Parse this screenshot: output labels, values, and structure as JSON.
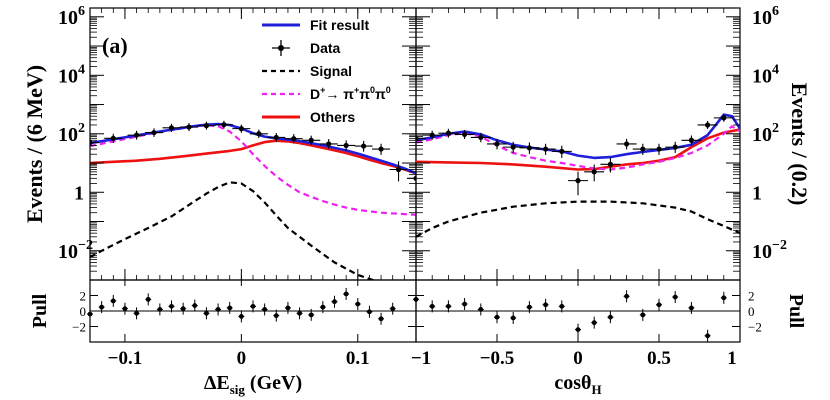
{
  "chart_data": [
    {
      "type": "line",
      "panel_label": "(a)",
      "ylabel": "Events / (6 MeV)",
      "xlabel": "ΔE",
      "xlabel_sub": "sig",
      "xlabel_unit": " (GeV)",
      "xlim": [
        -0.13,
        0.15
      ],
      "ylim": [
        0.001,
        2000000
      ],
      "yscale": "log",
      "x_ticks": [
        {
          "v": -0.1,
          "label": "−0.1"
        },
        {
          "v": 0.0,
          "label": "0"
        },
        {
          "v": 0.1,
          "label": "0.1"
        }
      ],
      "y_ticks": [
        {
          "v": 0.01,
          "base": "10",
          "exp": "−2"
        },
        {
          "v": 1,
          "base": "1",
          "exp": ""
        },
        {
          "v": 100,
          "base": "10",
          "exp": "2"
        },
        {
          "v": 10000,
          "base": "10",
          "exp": "4"
        },
        {
          "v": 1000000,
          "base": "10",
          "exp": "6"
        }
      ],
      "legend": {
        "placement": "top-right",
        "entries": [
          {
            "label": "Fit result",
            "style": "line",
            "color": "#1f1fdc"
          },
          {
            "label": "Data",
            "style": "errorbar",
            "color": "#000000"
          },
          {
            "label": "Signal",
            "style": "dashed",
            "color": "#000000"
          },
          {
            "label": "D",
            "sup1": "+",
            "arrow": "→ π",
            "sup2": "+",
            "mid": "π",
            "sup3": "0",
            "end": "π",
            "sup4": "0",
            "style": "dashed",
            "color": "#ee22ee"
          },
          {
            "label": "Others",
            "style": "line",
            "color": "#ee1111"
          }
        ]
      },
      "series": [
        {
          "name": "Fit result",
          "style": "line",
          "color": "#1f1fdc",
          "x": [
            -0.13,
            -0.11,
            -0.09,
            -0.07,
            -0.05,
            -0.04,
            -0.03,
            -0.02,
            -0.01,
            0.0,
            0.01,
            0.02,
            0.03,
            0.04,
            0.05,
            0.06,
            0.07,
            0.08,
            0.09,
            0.1,
            0.11,
            0.12,
            0.13,
            0.14,
            0.15
          ],
          "y": [
            48,
            65,
            88,
            120,
            160,
            185,
            205,
            215,
            200,
            150,
            105,
            80,
            70,
            63,
            56,
            48,
            40,
            33,
            27,
            21,
            16,
            12,
            9,
            6.5,
            4.5
          ]
        },
        {
          "name": "Signal",
          "style": "dashed",
          "color": "#000000",
          "x": [
            -0.13,
            -0.12,
            -0.1,
            -0.08,
            -0.06,
            -0.04,
            -0.03,
            -0.02,
            -0.01,
            0.0,
            0.01,
            0.02,
            0.03,
            0.04,
            0.06,
            0.08,
            0.1,
            0.12,
            0.14
          ],
          "y": [
            0.006,
            0.01,
            0.025,
            0.06,
            0.15,
            0.5,
            0.9,
            1.5,
            2.2,
            2.0,
            1.1,
            0.45,
            0.16,
            0.06,
            0.015,
            0.004,
            0.0015,
            0.0008,
            0.0006
          ]
        },
        {
          "name": "D+→π+π0π0",
          "style": "dashed",
          "color": "#ee22ee",
          "x": [
            -0.13,
            -0.11,
            -0.09,
            -0.07,
            -0.05,
            -0.04,
            -0.03,
            -0.02,
            -0.01,
            0.0,
            0.01,
            0.02,
            0.03,
            0.04,
            0.05,
            0.06,
            0.07,
            0.08,
            0.09,
            0.1,
            0.12,
            0.15
          ],
          "y": [
            38,
            55,
            80,
            115,
            155,
            180,
            195,
            180,
            120,
            55,
            20,
            8,
            3.5,
            1.8,
            1.0,
            0.7,
            0.5,
            0.38,
            0.3,
            0.25,
            0.2,
            0.17
          ]
        },
        {
          "name": "Others",
          "style": "line",
          "color": "#ee1111",
          "x": [
            -0.13,
            -0.11,
            -0.09,
            -0.07,
            -0.05,
            -0.03,
            -0.01,
            0.0,
            0.01,
            0.02,
            0.03,
            0.04,
            0.05,
            0.06,
            0.07,
            0.08,
            0.09,
            0.1,
            0.11,
            0.12,
            0.13,
            0.14,
            0.15
          ],
          "y": [
            10,
            11,
            12,
            14,
            17,
            21,
            26,
            30,
            40,
            52,
            58,
            55,
            48,
            40,
            33,
            27,
            22,
            17,
            13,
            10,
            8,
            6,
            4.5
          ]
        },
        {
          "name": "Data",
          "style": "errorbar",
          "color": "#000000",
          "x": [
            -0.13,
            -0.11,
            -0.09,
            -0.075,
            -0.06,
            -0.045,
            -0.03,
            -0.015,
            0.0,
            0.015,
            0.03,
            0.045,
            0.06,
            0.075,
            0.09,
            0.105,
            0.12,
            0.135,
            0.15
          ],
          "y": [
            50,
            70,
            90,
            110,
            160,
            170,
            190,
            205,
            150,
            100,
            75,
            68,
            60,
            45,
            40,
            38,
            30,
            6,
            3
          ],
          "yerr": [
            8,
            9,
            10,
            11,
            13,
            14,
            14,
            15,
            13,
            10,
            9,
            9,
            8,
            7,
            7,
            7,
            6,
            3,
            2
          ]
        }
      ]
    },
    {
      "type": "line",
      "ylabel": "Events / (0.2)",
      "xlabel": "cosθ",
      "xlabel_sub": "H",
      "xlabel_unit": "",
      "xlim": [
        -1,
        1
      ],
      "ylim": [
        0.001,
        2000000
      ],
      "yscale": "log",
      "x_ticks": [
        {
          "v": -1,
          "label": "−1"
        },
        {
          "v": -0.5,
          "label": "−0.5"
        },
        {
          "v": 0,
          "label": "0"
        },
        {
          "v": 0.5,
          "label": "0.5"
        },
        {
          "v": 1,
          "label": "1"
        }
      ],
      "y_ticks": [
        {
          "v": 0.01,
          "base": "10",
          "exp": "−2"
        },
        {
          "v": 1,
          "base": "1",
          "exp": ""
        },
        {
          "v": 100,
          "base": "10",
          "exp": "2"
        },
        {
          "v": 10000,
          "base": "10",
          "exp": "4"
        },
        {
          "v": 1000000,
          "base": "10",
          "exp": "6"
        }
      ],
      "series": [
        {
          "name": "Fit result",
          "style": "line",
          "color": "#1f1fdc",
          "x": [
            -1,
            -0.9,
            -0.8,
            -0.7,
            -0.6,
            -0.5,
            -0.4,
            -0.3,
            -0.2,
            -0.1,
            0.0,
            0.1,
            0.2,
            0.3,
            0.4,
            0.5,
            0.6,
            0.7,
            0.8,
            0.85,
            0.9,
            0.95,
            1.0
          ],
          "y": [
            60,
            75,
            100,
            120,
            95,
            60,
            42,
            34,
            29,
            25,
            18,
            15,
            16,
            20,
            24,
            28,
            33,
            42,
            90,
            200,
            450,
            400,
            150
          ]
        },
        {
          "name": "Signal",
          "style": "dashed",
          "color": "#000000",
          "x": [
            -1,
            -0.9,
            -0.8,
            -0.6,
            -0.4,
            -0.2,
            0.0,
            0.2,
            0.4,
            0.6,
            0.7,
            0.8,
            0.9,
            1.0
          ],
          "y": [
            0.03,
            0.06,
            0.1,
            0.2,
            0.32,
            0.42,
            0.48,
            0.48,
            0.42,
            0.3,
            0.22,
            0.12,
            0.07,
            0.04
          ]
        },
        {
          "name": "D+→π+π0π0",
          "style": "dashed",
          "color": "#ee22ee",
          "x": [
            -1,
            -0.9,
            -0.8,
            -0.7,
            -0.6,
            -0.5,
            -0.4,
            -0.3,
            -0.2,
            -0.1,
            0.0,
            0.1,
            0.2,
            0.3,
            0.4,
            0.5,
            0.6,
            0.7,
            0.8,
            0.9,
            0.95,
            1.0
          ],
          "y": [
            50,
            65,
            90,
            105,
            80,
            40,
            22,
            16,
            12,
            10,
            8,
            6.5,
            6,
            7,
            9,
            11,
            15,
            22,
            40,
            100,
            180,
            120
          ]
        },
        {
          "name": "Others",
          "style": "line",
          "color": "#ee1111",
          "x": [
            -1,
            -0.8,
            -0.6,
            -0.4,
            -0.2,
            0.0,
            0.1,
            0.2,
            0.3,
            0.4,
            0.5,
            0.6,
            0.7,
            0.8,
            0.9,
            1.0
          ],
          "y": [
            11,
            10.5,
            10,
            9,
            7.5,
            6,
            6.2,
            7.5,
            9,
            10,
            12,
            16,
            35,
            70,
            110,
            140
          ]
        },
        {
          "name": "Data",
          "style": "errorbar",
          "color": "#000000",
          "x": [
            -1,
            -0.9,
            -0.8,
            -0.7,
            -0.6,
            -0.5,
            -0.4,
            -0.3,
            -0.2,
            -0.1,
            0.0,
            0.1,
            0.2,
            0.3,
            0.4,
            0.5,
            0.6,
            0.7,
            0.8,
            0.9
          ],
          "y": [
            70,
            90,
            105,
            95,
            75,
            45,
            35,
            33,
            30,
            25,
            2.5,
            5,
            9,
            45,
            30,
            30,
            35,
            60,
            200,
            350
          ],
          "yerr": [
            10,
            11,
            12,
            11,
            10,
            8,
            7,
            7,
            6,
            6,
            1.5,
            2,
            3,
            8,
            6,
            6,
            7,
            9,
            16,
            22
          ]
        }
      ]
    }
  ],
  "pulls": [
    {
      "ylabel": "Pull",
      "ylim": [
        -4,
        4
      ],
      "y_ticks": [
        {
          "v": 2,
          "label": "2"
        },
        {
          "v": 0,
          "label": "0"
        },
        {
          "v": -2,
          "label": "−2"
        }
      ],
      "x": [
        -0.13,
        -0.12,
        -0.11,
        -0.1,
        -0.09,
        -0.08,
        -0.07,
        -0.06,
        -0.05,
        -0.04,
        -0.03,
        -0.02,
        -0.01,
        0.0,
        0.01,
        0.02,
        0.03,
        0.04,
        0.05,
        0.06,
        0.07,
        0.08,
        0.09,
        0.1,
        0.11,
        0.12,
        0.13
      ],
      "y": [
        -0.4,
        0.5,
        1.3,
        0.3,
        -0.3,
        1.5,
        0.2,
        0.6,
        0.3,
        0.7,
        -0.3,
        0.2,
        0.4,
        -0.7,
        0.6,
        0.2,
        -0.6,
        0.4,
        -0.3,
        -0.5,
        0.5,
        1.2,
        2.2,
        0.9,
        -0.1,
        -1.0,
        0.3
      ]
    },
    {
      "ylabel": "Pull",
      "ylim": [
        -4,
        4
      ],
      "y_ticks": [
        {
          "v": 2,
          "label": "2"
        },
        {
          "v": 0,
          "label": "0"
        },
        {
          "v": -2,
          "label": "−2"
        }
      ],
      "x": [
        -1,
        -0.9,
        -0.8,
        -0.7,
        -0.6,
        -0.5,
        -0.4,
        -0.3,
        -0.2,
        -0.1,
        0.0,
        0.1,
        0.2,
        0.3,
        0.4,
        0.5,
        0.6,
        0.7,
        0.8,
        0.9
      ],
      "y": [
        1.5,
        0.6,
        0.6,
        0.9,
        0.2,
        -0.8,
        -0.9,
        0.5,
        0.8,
        0.6,
        -2.4,
        -1.5,
        -0.8,
        1.9,
        -0.5,
        0.8,
        1.8,
        0.4,
        -3.2,
        1.7
      ]
    }
  ]
}
